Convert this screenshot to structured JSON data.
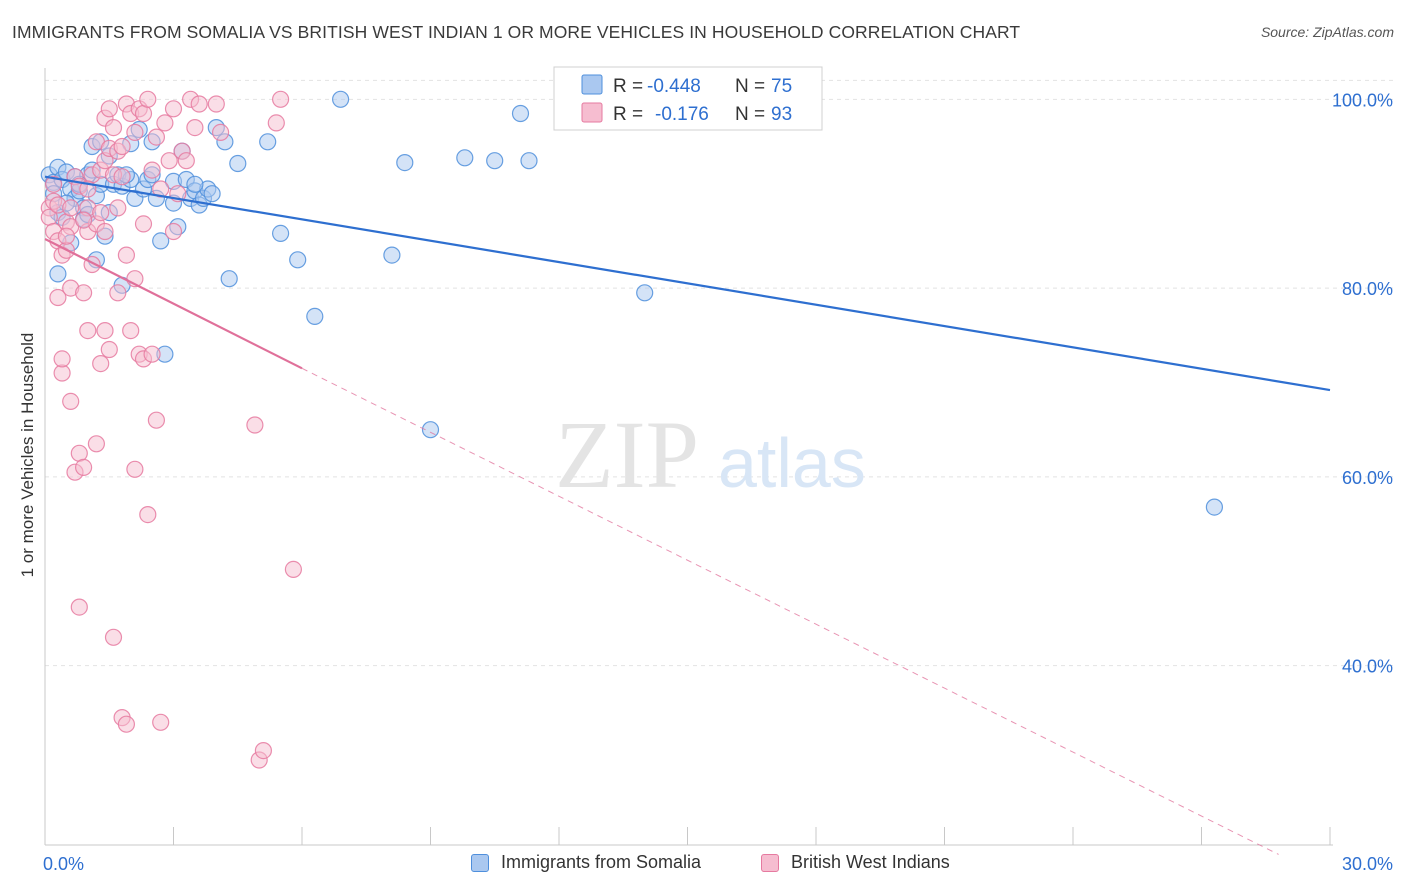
{
  "header": {
    "title": "IMMIGRANTS FROM SOMALIA VS BRITISH WEST INDIAN 1 OR MORE VEHICLES IN HOUSEHOLD CORRELATION CHART",
    "source": "Source: ZipAtlas.com"
  },
  "watermark": {
    "zip": "ZIP",
    "atlas": "atlas"
  },
  "legend_top": {
    "r_label": "R =",
    "n_label": "N =",
    "rows": [
      {
        "r": "-0.448",
        "n": "75"
      },
      {
        "r": "-0.176",
        "n": "93"
      }
    ]
  },
  "colors": {
    "blue_fill": "#aac8f0",
    "blue_stroke": "#4f8fdc",
    "blue_line": "#2e6fd0",
    "pink_fill": "#f6bdd0",
    "pink_stroke": "#e67aa0",
    "pink_line": "#e0709a",
    "value_text": "#2e6fd0",
    "grid": "#e2e2e2"
  },
  "chart_data": {
    "type": "scatter",
    "xlabel": "",
    "ylabel": "1 or more Vehicles in Household",
    "xlim": [
      0,
      30
    ],
    "ylim": [
      21,
      103
    ],
    "x_tick_labels": [
      "0.0%",
      "30.0%"
    ],
    "y_ticks": [
      40,
      60,
      80,
      100
    ],
    "y_tick_labels": [
      "40.0%",
      "60.0%",
      "80.0%",
      "100.0%"
    ],
    "grid": "horizontal dashed",
    "legend_placement": "bottom-center",
    "series": [
      {
        "name": "Immigrants from Somalia",
        "r": -0.448,
        "n": 75,
        "trend": {
          "x": [
            0,
            30
          ],
          "y": [
            91.8,
            69.2
          ]
        },
        "points": [
          [
            0.1,
            92.0
          ],
          [
            0.2,
            91.2
          ],
          [
            0.3,
            92.8
          ],
          [
            0.3,
            88.0
          ],
          [
            0.4,
            91.5
          ],
          [
            0.4,
            87.5
          ],
          [
            0.5,
            92.3
          ],
          [
            0.6,
            90.5
          ],
          [
            0.6,
            84.8
          ],
          [
            0.7,
            91.8
          ],
          [
            0.7,
            89.5
          ],
          [
            0.8,
            90.3
          ],
          [
            0.9,
            88.5
          ],
          [
            0.9,
            87.3
          ],
          [
            1.0,
            92.0
          ],
          [
            1.0,
            87.8
          ],
          [
            1.1,
            95.0
          ],
          [
            1.2,
            89.8
          ],
          [
            1.2,
            83.0
          ],
          [
            1.3,
            95.5
          ],
          [
            1.3,
            91.0
          ],
          [
            1.4,
            85.5
          ],
          [
            1.5,
            94.0
          ],
          [
            1.6,
            91.0
          ],
          [
            1.7,
            92.0
          ],
          [
            1.8,
            90.8
          ],
          [
            1.8,
            80.3
          ],
          [
            2.0,
            95.3
          ],
          [
            2.1,
            89.5
          ],
          [
            2.2,
            96.8
          ],
          [
            2.3,
            90.5
          ],
          [
            2.4,
            91.5
          ],
          [
            2.5,
            95.5
          ],
          [
            2.6,
            89.5
          ],
          [
            2.7,
            85.0
          ],
          [
            2.8,
            73.0
          ],
          [
            3.0,
            91.3
          ],
          [
            3.1,
            86.5
          ],
          [
            3.2,
            94.5
          ],
          [
            3.3,
            91.5
          ],
          [
            3.4,
            89.5
          ],
          [
            3.5,
            90.3
          ],
          [
            3.6,
            88.8
          ],
          [
            3.7,
            89.5
          ],
          [
            3.8,
            90.5
          ],
          [
            3.9,
            90.0
          ],
          [
            4.0,
            97.0
          ],
          [
            4.2,
            95.5
          ],
          [
            4.3,
            81.0
          ],
          [
            4.5,
            93.2
          ],
          [
            5.2,
            95.5
          ],
          [
            5.5,
            85.8
          ],
          [
            5.9,
            83.0
          ],
          [
            6.3,
            77.0
          ],
          [
            6.9,
            100.0
          ],
          [
            8.1,
            83.5
          ],
          [
            8.4,
            93.3
          ],
          [
            9.0,
            65.0
          ],
          [
            9.8,
            93.8
          ],
          [
            10.5,
            93.5
          ],
          [
            11.1,
            98.5
          ],
          [
            11.3,
            93.5
          ],
          [
            14.0,
            79.5
          ],
          [
            27.3,
            56.8
          ],
          [
            0.2,
            90.0
          ],
          [
            0.5,
            89.0
          ],
          [
            1.5,
            88.0
          ],
          [
            2.0,
            91.5
          ],
          [
            3.5,
            91.0
          ],
          [
            0.8,
            91.0
          ],
          [
            2.5,
            92.0
          ],
          [
            1.1,
            92.5
          ],
          [
            3.0,
            89.0
          ],
          [
            1.9,
            92.0
          ],
          [
            0.3,
            81.5
          ]
        ]
      },
      {
        "name": "British West Indians",
        "r": -0.176,
        "n": 93,
        "trend": {
          "x": [
            0,
            6.0
          ],
          "y": [
            85.2,
            71.5
          ]
        },
        "trend_extension": {
          "x": [
            6.0,
            28.8
          ],
          "y": [
            71.5,
            20.0
          ]
        },
        "points": [
          [
            0.1,
            88.5
          ],
          [
            0.1,
            87.5
          ],
          [
            0.2,
            89.2
          ],
          [
            0.2,
            86.0
          ],
          [
            0.3,
            88.8
          ],
          [
            0.3,
            85.0
          ],
          [
            0.3,
            79.0
          ],
          [
            0.4,
            83.5
          ],
          [
            0.4,
            71.0
          ],
          [
            0.4,
            72.5
          ],
          [
            0.5,
            87.0
          ],
          [
            0.5,
            84.0
          ],
          [
            0.6,
            86.5
          ],
          [
            0.6,
            80.0
          ],
          [
            0.6,
            68.0
          ],
          [
            0.7,
            91.8
          ],
          [
            0.7,
            60.5
          ],
          [
            0.8,
            90.8
          ],
          [
            0.8,
            62.5
          ],
          [
            0.9,
            79.5
          ],
          [
            0.9,
            61.0
          ],
          [
            1.0,
            88.5
          ],
          [
            1.0,
            86.0
          ],
          [
            1.0,
            75.5
          ],
          [
            1.1,
            92.0
          ],
          [
            1.1,
            82.5
          ],
          [
            1.2,
            95.5
          ],
          [
            1.2,
            86.8
          ],
          [
            1.2,
            63.5
          ],
          [
            1.3,
            92.5
          ],
          [
            1.3,
            88.0
          ],
          [
            1.3,
            72.0
          ],
          [
            1.4,
            98.0
          ],
          [
            1.4,
            93.5
          ],
          [
            1.4,
            75.5
          ],
          [
            1.5,
            99.0
          ],
          [
            1.5,
            94.8
          ],
          [
            1.5,
            73.5
          ],
          [
            1.6,
            97.0
          ],
          [
            1.6,
            92.0
          ],
          [
            1.6,
            43.0
          ],
          [
            1.7,
            94.5
          ],
          [
            1.7,
            88.5
          ],
          [
            1.7,
            79.5
          ],
          [
            1.8,
            95.0
          ],
          [
            1.8,
            34.5
          ],
          [
            1.9,
            99.5
          ],
          [
            1.9,
            83.5
          ],
          [
            1.9,
            33.8
          ],
          [
            2.0,
            98.5
          ],
          [
            2.0,
            75.5
          ],
          [
            2.1,
            96.5
          ],
          [
            2.1,
            81.0
          ],
          [
            2.1,
            60.8
          ],
          [
            2.2,
            99.0
          ],
          [
            2.2,
            73.0
          ],
          [
            2.3,
            98.5
          ],
          [
            2.3,
            72.5
          ],
          [
            2.4,
            100.0
          ],
          [
            2.4,
            56.0
          ],
          [
            2.5,
            92.5
          ],
          [
            2.5,
            73.0
          ],
          [
            2.6,
            96.0
          ],
          [
            2.6,
            66.0
          ],
          [
            2.7,
            90.5
          ],
          [
            2.7,
            34.0
          ],
          [
            2.8,
            97.5
          ],
          [
            2.9,
            93.5
          ],
          [
            3.0,
            99.0
          ],
          [
            3.0,
            86.0
          ],
          [
            3.1,
            90.0
          ],
          [
            3.2,
            94.5
          ],
          [
            3.3,
            93.5
          ],
          [
            3.4,
            100.0
          ],
          [
            3.5,
            97.0
          ],
          [
            3.6,
            99.5
          ],
          [
            4.0,
            99.5
          ],
          [
            4.1,
            96.5
          ],
          [
            4.9,
            65.5
          ],
          [
            5.0,
            30.0
          ],
          [
            5.1,
            31.0
          ],
          [
            5.4,
            97.5
          ],
          [
            5.5,
            100.0
          ],
          [
            5.8,
            50.2
          ],
          [
            0.8,
            46.2
          ],
          [
            0.5,
            85.5
          ],
          [
            0.2,
            91.0
          ],
          [
            1.0,
            90.5
          ],
          [
            1.8,
            91.8
          ],
          [
            2.3,
            86.8
          ],
          [
            0.9,
            87.2
          ],
          [
            0.6,
            88.5
          ],
          [
            1.4,
            86.0
          ]
        ]
      }
    ]
  }
}
